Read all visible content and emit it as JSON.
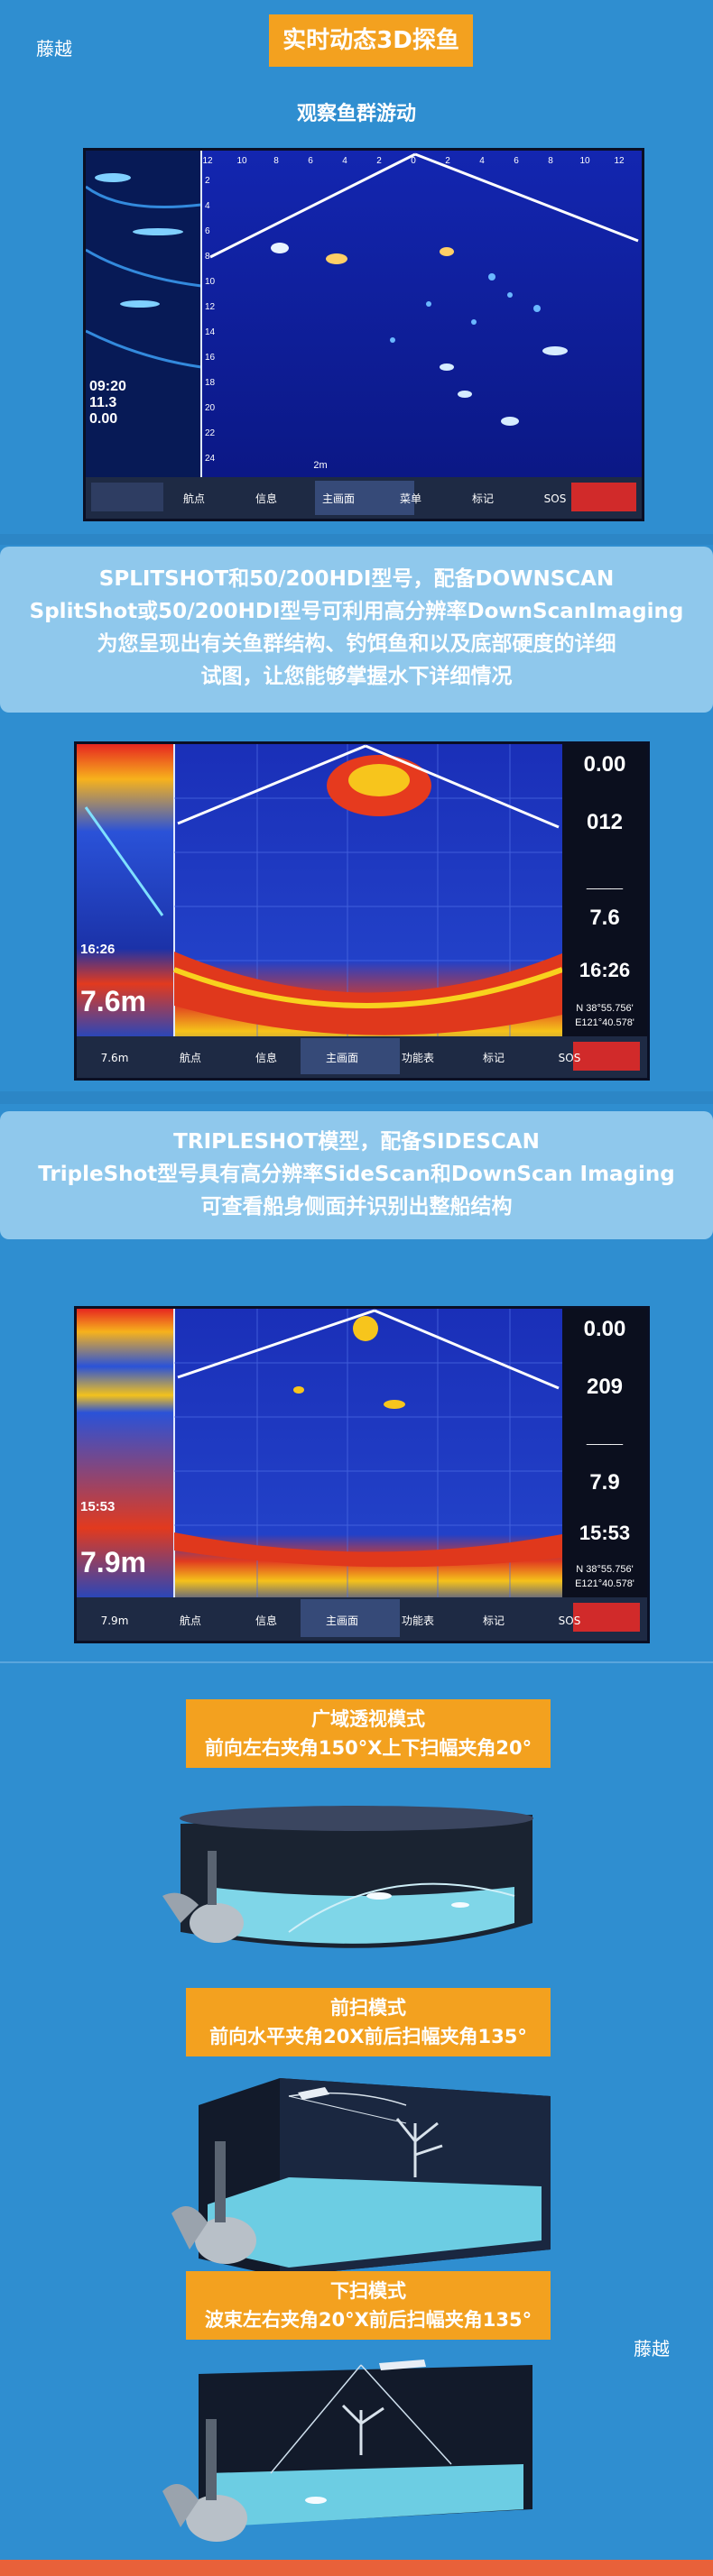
{
  "brand": "藤越",
  "header": {
    "title": "实时动态3D探鱼",
    "subtitle": "观察鱼群游动"
  },
  "colors": {
    "background": "#2f8ed0",
    "accent": "#f3a11f",
    "panel": "#8fc8ec",
    "footer_bar": "#e8613a"
  },
  "screen1": {
    "top_scale": [
      "12",
      "10",
      "8",
      "6",
      "4",
      "2",
      "0",
      "2",
      "4",
      "6",
      "8",
      "10",
      "12"
    ],
    "depth_scale": [
      "2",
      "4",
      "6",
      "8",
      "10",
      "12",
      "14",
      "16",
      "18",
      "20",
      "22",
      "24"
    ],
    "readouts": [
      "09:20",
      "11.3",
      "0.00"
    ],
    "zoom_label": "2m",
    "buttons": [
      "航点",
      "信息",
      "主画面",
      "菜单",
      "标记",
      "SOS"
    ]
  },
  "section2": {
    "lines": [
      "SPLITSHOT和50/200HDI型号，配备DOWNSCAN",
      "SplitShot或50/200HDI型号可利用高分辨率DownScanImaging",
      "为您呈现出有关鱼群结构、钓饵鱼和以及底部硬度的详细",
      "试图，让您能够掌握水下详细情况"
    ]
  },
  "screen2": {
    "readouts": [
      "16:26",
      "7.6m"
    ],
    "side_values": [
      "0.00",
      "012",
      "___",
      "7.6",
      "16:26"
    ],
    "coords": [
      "N 38°55.756'",
      "E121°40.578'"
    ],
    "buttons": [
      "7.6m",
      "航点",
      "信息",
      "主画面",
      "功能表",
      "标记",
      "SOS"
    ]
  },
  "section3": {
    "lines": [
      "TRIPLESHOT模型，配备SIDESCAN",
      "TripleShot型号具有高分辨率SideScan和DownScan Imaging",
      "可查看船身侧面并识别出整船结构"
    ]
  },
  "screen3": {
    "readouts": [
      "15:53",
      "7.9m"
    ],
    "side_values": [
      "0.00",
      "209",
      "___",
      "7.9",
      "15:53"
    ],
    "coords": [
      "N 38°55.756'",
      "E121°40.578'"
    ],
    "buttons": [
      "7.9m",
      "航点",
      "信息",
      "主画面",
      "功能表",
      "标记",
      "SOS"
    ]
  },
  "modes": [
    {
      "name": "广域透视模式",
      "desc": "前向左右夹角150°X上下扫幅夹角20°"
    },
    {
      "name": "前扫模式",
      "desc": "前向水平夹角20X前后扫幅夹角135°"
    },
    {
      "name": "下扫模式",
      "desc": "波束左右夹角20°X前后扫幅夹角135°"
    }
  ]
}
